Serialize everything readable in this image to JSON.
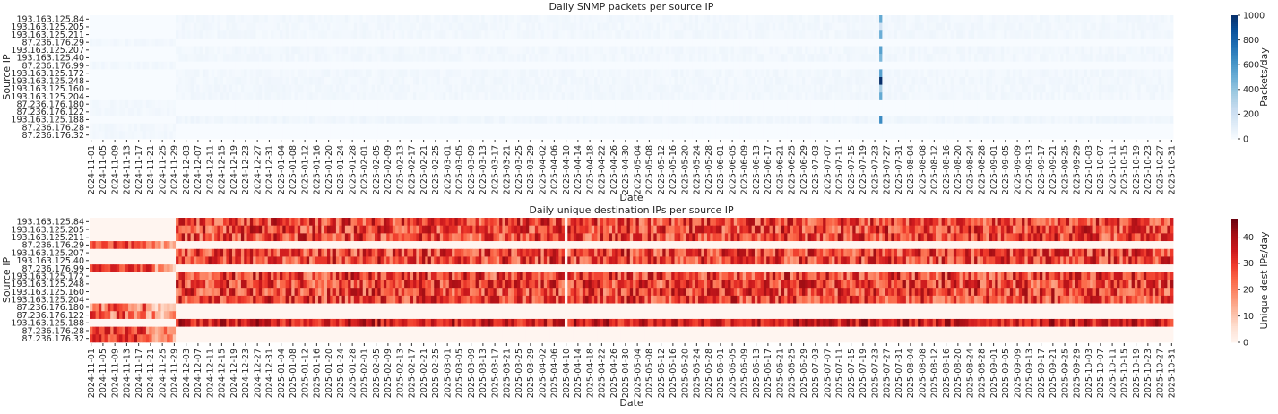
{
  "chart_data": [
    {
      "type": "heatmap",
      "title": "Daily SNMP packets per source IP",
      "xlabel": "Date",
      "ylabel": "Source IP",
      "colorbar_label": "Packets/day",
      "colormap": "Blues",
      "colors": [
        "#f7fbff",
        "#deebf7",
        "#c6dbef",
        "#9ecae1",
        "#6baed6",
        "#4292c6",
        "#2171b5",
        "#08519c",
        "#08306b"
      ],
      "vmin": 0,
      "vmax": 1000,
      "colorbar_ticks": [
        "0",
        "200",
        "400",
        "600",
        "800",
        "1000"
      ],
      "date_range": [
        "2024-11-01",
        "2025-10-31"
      ],
      "y_labels": [
        "193.163.125.84",
        "193.163.125.205",
        "193.163.125.211",
        "87.236.176.29",
        "193.163.125.207",
        "193.163.125.40",
        "87.236.176.99",
        "193.163.125.172",
        "193.163.125.248",
        "193.163.125.160",
        "193.163.125.204",
        "87.236.176.180",
        "87.236.176.122",
        "193.163.125.188",
        "87.236.176.28",
        "87.236.176.32"
      ],
      "rows": [
        {
          "active": [
            "2024-11-30",
            "2025-10-31"
          ],
          "typical": [
            10,
            45
          ]
        },
        {
          "active": [
            "2024-11-30",
            "2025-10-31"
          ],
          "typical": [
            10,
            45
          ]
        },
        {
          "active": [
            "2024-11-30",
            "2025-10-31"
          ],
          "typical": [
            10,
            45
          ]
        },
        {
          "active": [
            "2024-11-01",
            "2024-11-29"
          ],
          "typical": [
            10,
            40
          ]
        },
        {
          "active": [
            "2024-11-30",
            "2025-10-31"
          ],
          "typical": [
            10,
            45
          ]
        },
        {
          "active": [
            "2024-11-30",
            "2025-10-31"
          ],
          "typical": [
            10,
            45
          ]
        },
        {
          "active": [
            "2024-11-01",
            "2024-11-29"
          ],
          "typical": [
            10,
            40
          ]
        },
        {
          "active": [
            "2024-11-30",
            "2025-10-31"
          ],
          "typical": [
            10,
            45
          ]
        },
        {
          "active": [
            "2024-11-30",
            "2025-10-31"
          ],
          "typical": [
            10,
            45
          ]
        },
        {
          "active": [
            "2024-11-30",
            "2025-10-31"
          ],
          "typical": [
            10,
            45
          ]
        },
        {
          "active": [
            "2024-11-30",
            "2025-10-31"
          ],
          "typical": [
            10,
            45
          ]
        },
        {
          "active": [
            "2024-11-01",
            "2024-11-29"
          ],
          "typical": [
            10,
            40
          ]
        },
        {
          "active": [
            "2024-11-01",
            "2024-11-29"
          ],
          "typical": [
            10,
            40
          ]
        },
        {
          "active": [
            "2024-11-30",
            "2025-10-31"
          ],
          "typical": [
            20,
            55
          ]
        },
        {
          "active": [
            "2024-11-01",
            "2024-11-29"
          ],
          "typical": [
            10,
            40
          ]
        },
        {
          "active": [
            "2024-11-01",
            "2024-11-29"
          ],
          "typical": [
            10,
            40
          ]
        }
      ],
      "spike": {
        "date": "2025-07-25",
        "values": [
          520,
          200,
          500,
          0,
          560,
          460,
          0,
          560,
          1000,
          350,
          520,
          0,
          0,
          650,
          0,
          0
        ]
      },
      "x_tick_labels": [
        "2024-11-01",
        "2024-11-05",
        "2024-11-09",
        "2024-11-13",
        "2024-11-17",
        "2024-11-21",
        "2024-11-25",
        "2024-11-29",
        "2024-12-03",
        "2024-12-07",
        "2024-12-11",
        "2024-12-15",
        "2024-12-19",
        "2024-12-23",
        "2024-12-27",
        "2024-12-31",
        "2025-01-04",
        "2025-01-08",
        "2025-01-12",
        "2025-01-16",
        "2025-01-20",
        "2025-01-24",
        "2025-01-28",
        "2025-02-01",
        "2025-02-05",
        "2025-02-09",
        "2025-02-13",
        "2025-02-17",
        "2025-02-21",
        "2025-02-25",
        "2025-03-01",
        "2025-03-05",
        "2025-03-09",
        "2025-03-13",
        "2025-03-17",
        "2025-03-21",
        "2025-03-25",
        "2025-03-29",
        "2025-04-02",
        "2025-04-06",
        "2025-04-10",
        "2025-04-14",
        "2025-04-18",
        "2025-04-22",
        "2025-04-26",
        "2025-04-30",
        "2025-05-04",
        "2025-05-08",
        "2025-05-12",
        "2025-05-16",
        "2025-05-20",
        "2025-05-24",
        "2025-05-28",
        "2025-06-01",
        "2025-06-05",
        "2025-06-09",
        "2025-06-13",
        "2025-06-17",
        "2025-06-21",
        "2025-06-25",
        "2025-06-29",
        "2025-07-03",
        "2025-07-07",
        "2025-07-11",
        "2025-07-15",
        "2025-07-19",
        "2025-07-23",
        "2025-07-27",
        "2025-07-31",
        "2025-08-04",
        "2025-08-08",
        "2025-08-12",
        "2025-08-16",
        "2025-08-20",
        "2025-08-24",
        "2025-08-28",
        "2025-09-01",
        "2025-09-05",
        "2025-09-09",
        "2025-09-13",
        "2025-09-17",
        "2025-09-21",
        "2025-09-25",
        "2025-09-29",
        "2025-10-03",
        "2025-10-07",
        "2025-10-11",
        "2025-10-15",
        "2025-10-19",
        "2025-10-23",
        "2025-10-27",
        "2025-10-31"
      ]
    },
    {
      "type": "heatmap",
      "title": "Daily unique destination IPs per source IP",
      "xlabel": "Date",
      "ylabel": "Source IP",
      "colorbar_label": "Unique dest IPs/day",
      "colormap": "Reds",
      "colors": [
        "#fff5f0",
        "#fee0d2",
        "#fcbba1",
        "#fc9272",
        "#fb6a4a",
        "#ef3b2c",
        "#cb181d",
        "#a50f15",
        "#67000d"
      ],
      "vmin": 0,
      "vmax": 47,
      "colorbar_ticks": [
        "0",
        "10",
        "20",
        "30",
        "40"
      ],
      "date_range": [
        "2024-11-01",
        "2025-10-31"
      ],
      "y_labels": [
        "193.163.125.84",
        "193.163.125.205",
        "193.163.125.211",
        "87.236.176.29",
        "193.163.125.207",
        "193.163.125.40",
        "87.236.176.99",
        "193.163.125.172",
        "193.163.125.248",
        "193.163.125.160",
        "193.163.125.204",
        "87.236.176.180",
        "87.236.176.122",
        "193.163.125.188",
        "87.236.176.28",
        "87.236.176.32"
      ],
      "rows": [
        {
          "active": [
            "2024-11-30",
            "2025-10-31"
          ],
          "typical": [
            15,
            42
          ]
        },
        {
          "active": [
            "2024-11-30",
            "2025-10-31"
          ],
          "typical": [
            15,
            42
          ]
        },
        {
          "active": [
            "2024-11-30",
            "2025-10-31"
          ],
          "typical": [
            15,
            42
          ]
        },
        {
          "active": [
            "2024-11-01",
            "2024-11-29"
          ],
          "typical": [
            20,
            36
          ],
          "fading_from": "2024-11-20"
        },
        {
          "active": [
            "2024-11-30",
            "2025-10-31"
          ],
          "typical": [
            15,
            42
          ]
        },
        {
          "active": [
            "2024-11-30",
            "2025-10-31"
          ],
          "typical": [
            15,
            42
          ]
        },
        {
          "active": [
            "2024-11-01",
            "2024-11-29"
          ],
          "typical": [
            20,
            38
          ],
          "fading_from": "2024-11-22"
        },
        {
          "active": [
            "2024-11-30",
            "2025-10-31"
          ],
          "typical": [
            15,
            42
          ]
        },
        {
          "active": [
            "2024-11-30",
            "2025-10-31"
          ],
          "typical": [
            15,
            42
          ]
        },
        {
          "active": [
            "2024-11-30",
            "2025-10-31"
          ],
          "typical": [
            15,
            42
          ]
        },
        {
          "active": [
            "2024-11-30",
            "2025-10-31"
          ],
          "typical": [
            15,
            42
          ]
        },
        {
          "active": [
            "2024-11-01",
            "2024-11-29"
          ],
          "typical": [
            10,
            36
          ],
          "fading_from": "2024-11-20"
        },
        {
          "active": [
            "2024-11-01",
            "2024-11-29"
          ],
          "typical": [
            10,
            38
          ],
          "fading_from": "2024-11-20"
        },
        {
          "active": [
            "2024-11-30",
            "2025-10-31"
          ],
          "typical": [
            25,
            45
          ]
        },
        {
          "active": [
            "2024-11-01",
            "2024-11-29"
          ],
          "typical": [
            20,
            38
          ],
          "fading_from": "2024-11-20"
        },
        {
          "active": [
            "2024-11-01",
            "2024-11-29"
          ],
          "typical": [
            20,
            40
          ],
          "fading_from": "2024-11-22"
        }
      ],
      "gap": {
        "date": "2025-04-10",
        "value": 0
      },
      "x_tick_labels": [
        "2024-11-01",
        "2024-11-05",
        "2024-11-09",
        "2024-11-13",
        "2024-11-17",
        "2024-11-21",
        "2024-11-25",
        "2024-11-29",
        "2024-12-03",
        "2024-12-07",
        "2024-12-11",
        "2024-12-15",
        "2024-12-19",
        "2024-12-23",
        "2024-12-27",
        "2024-12-31",
        "2025-01-04",
        "2025-01-08",
        "2025-01-12",
        "2025-01-16",
        "2025-01-20",
        "2025-01-24",
        "2025-01-28",
        "2025-02-01",
        "2025-02-05",
        "2025-02-09",
        "2025-02-13",
        "2025-02-17",
        "2025-02-21",
        "2025-02-25",
        "2025-03-01",
        "2025-03-05",
        "2025-03-09",
        "2025-03-13",
        "2025-03-17",
        "2025-03-21",
        "2025-03-25",
        "2025-03-29",
        "2025-04-02",
        "2025-04-06",
        "2025-04-10",
        "2025-04-14",
        "2025-04-18",
        "2025-04-22",
        "2025-04-26",
        "2025-04-30",
        "2025-05-04",
        "2025-05-08",
        "2025-05-12",
        "2025-05-16",
        "2025-05-20",
        "2025-05-24",
        "2025-05-28",
        "2025-06-01",
        "2025-06-05",
        "2025-06-09",
        "2025-06-13",
        "2025-06-17",
        "2025-06-21",
        "2025-06-25",
        "2025-06-29",
        "2025-07-03",
        "2025-07-07",
        "2025-07-11",
        "2025-07-15",
        "2025-07-19",
        "2025-07-23",
        "2025-07-27",
        "2025-07-31",
        "2025-08-04",
        "2025-08-08",
        "2025-08-12",
        "2025-08-16",
        "2025-08-20",
        "2025-08-24",
        "2025-08-28",
        "2025-09-01",
        "2025-09-05",
        "2025-09-09",
        "2025-09-13",
        "2025-09-17",
        "2025-09-21",
        "2025-09-25",
        "2025-09-29",
        "2025-10-03",
        "2025-10-07",
        "2025-10-11",
        "2025-10-15",
        "2025-10-19",
        "2025-10-23",
        "2025-10-27",
        "2025-10-31"
      ]
    }
  ]
}
